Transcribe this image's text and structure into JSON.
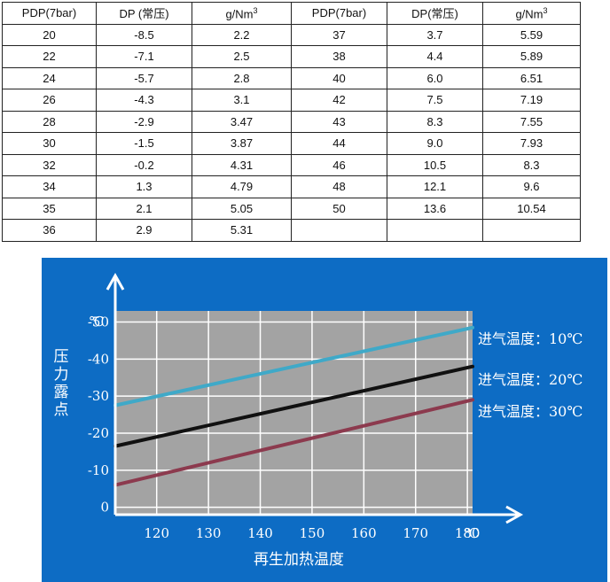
{
  "table": {
    "headers": [
      "PDP(7bar)",
      "DP  (常压)",
      "g/Nm",
      "PDP(7bar)",
      "DP(常压)",
      "g/Nm"
    ],
    "header_sup": "3",
    "left_rows": [
      [
        "20",
        "-8.5",
        "2.2"
      ],
      [
        "22",
        "-7.1",
        "2.5"
      ],
      [
        "24",
        "-5.7",
        "2.8"
      ],
      [
        "26",
        "-4.3",
        "3.1"
      ],
      [
        "28",
        "-2.9",
        "3.47"
      ],
      [
        "30",
        "-1.5",
        "3.87"
      ],
      [
        "32",
        "-0.2",
        "4.31"
      ],
      [
        "34",
        "1.3",
        "4.79"
      ],
      [
        "35",
        "2.1",
        "5.05"
      ],
      [
        "36",
        "2.9",
        "5.31"
      ]
    ],
    "right_rows": [
      [
        "37",
        "3.7",
        "5.59"
      ],
      [
        "38",
        "4.4",
        "5.89"
      ],
      [
        "40",
        "6.0",
        "6.51"
      ],
      [
        "42",
        "7.5",
        "7.19"
      ],
      [
        "43",
        "8.3",
        "7.55"
      ],
      [
        "44",
        "9.0",
        "7.93"
      ],
      [
        "46",
        "10.5",
        "8.3"
      ],
      [
        "48",
        "12.1",
        "9.6"
      ],
      [
        "50",
        "13.6",
        "10.54"
      ],
      [
        "",
        "",
        ""
      ]
    ]
  },
  "chart_data": {
    "type": "line",
    "xlabel": "再生加热温度",
    "ylabel": "压力露点",
    "x_unit": "℃",
    "y_unit": "℃",
    "x_ticks": [
      120,
      130,
      140,
      150,
      160,
      170,
      180
    ],
    "y_ticks": [
      "-50",
      "-40",
      "-30",
      "-20",
      "-10",
      "0"
    ],
    "y_tick_values": [
      -50,
      -40,
      -30,
      -20,
      -10,
      0
    ],
    "xlim": [
      112,
      181
    ],
    "ylim": [
      2,
      -53
    ],
    "grid": true,
    "series": [
      {
        "name": "进气温度：10℃",
        "color": "#3fa9c8",
        "x": [
          112,
          181
        ],
        "y": [
          -27.5,
          -48.5
        ]
      },
      {
        "name": "进气温度：20℃",
        "color": "#111111",
        "x": [
          112,
          181
        ],
        "y": [
          -16.5,
          -38
        ]
      },
      {
        "name": "进气温度：30℃",
        "color": "#8c3a4e",
        "x": [
          112,
          181
        ],
        "y": [
          -6,
          -29
        ]
      }
    ]
  }
}
